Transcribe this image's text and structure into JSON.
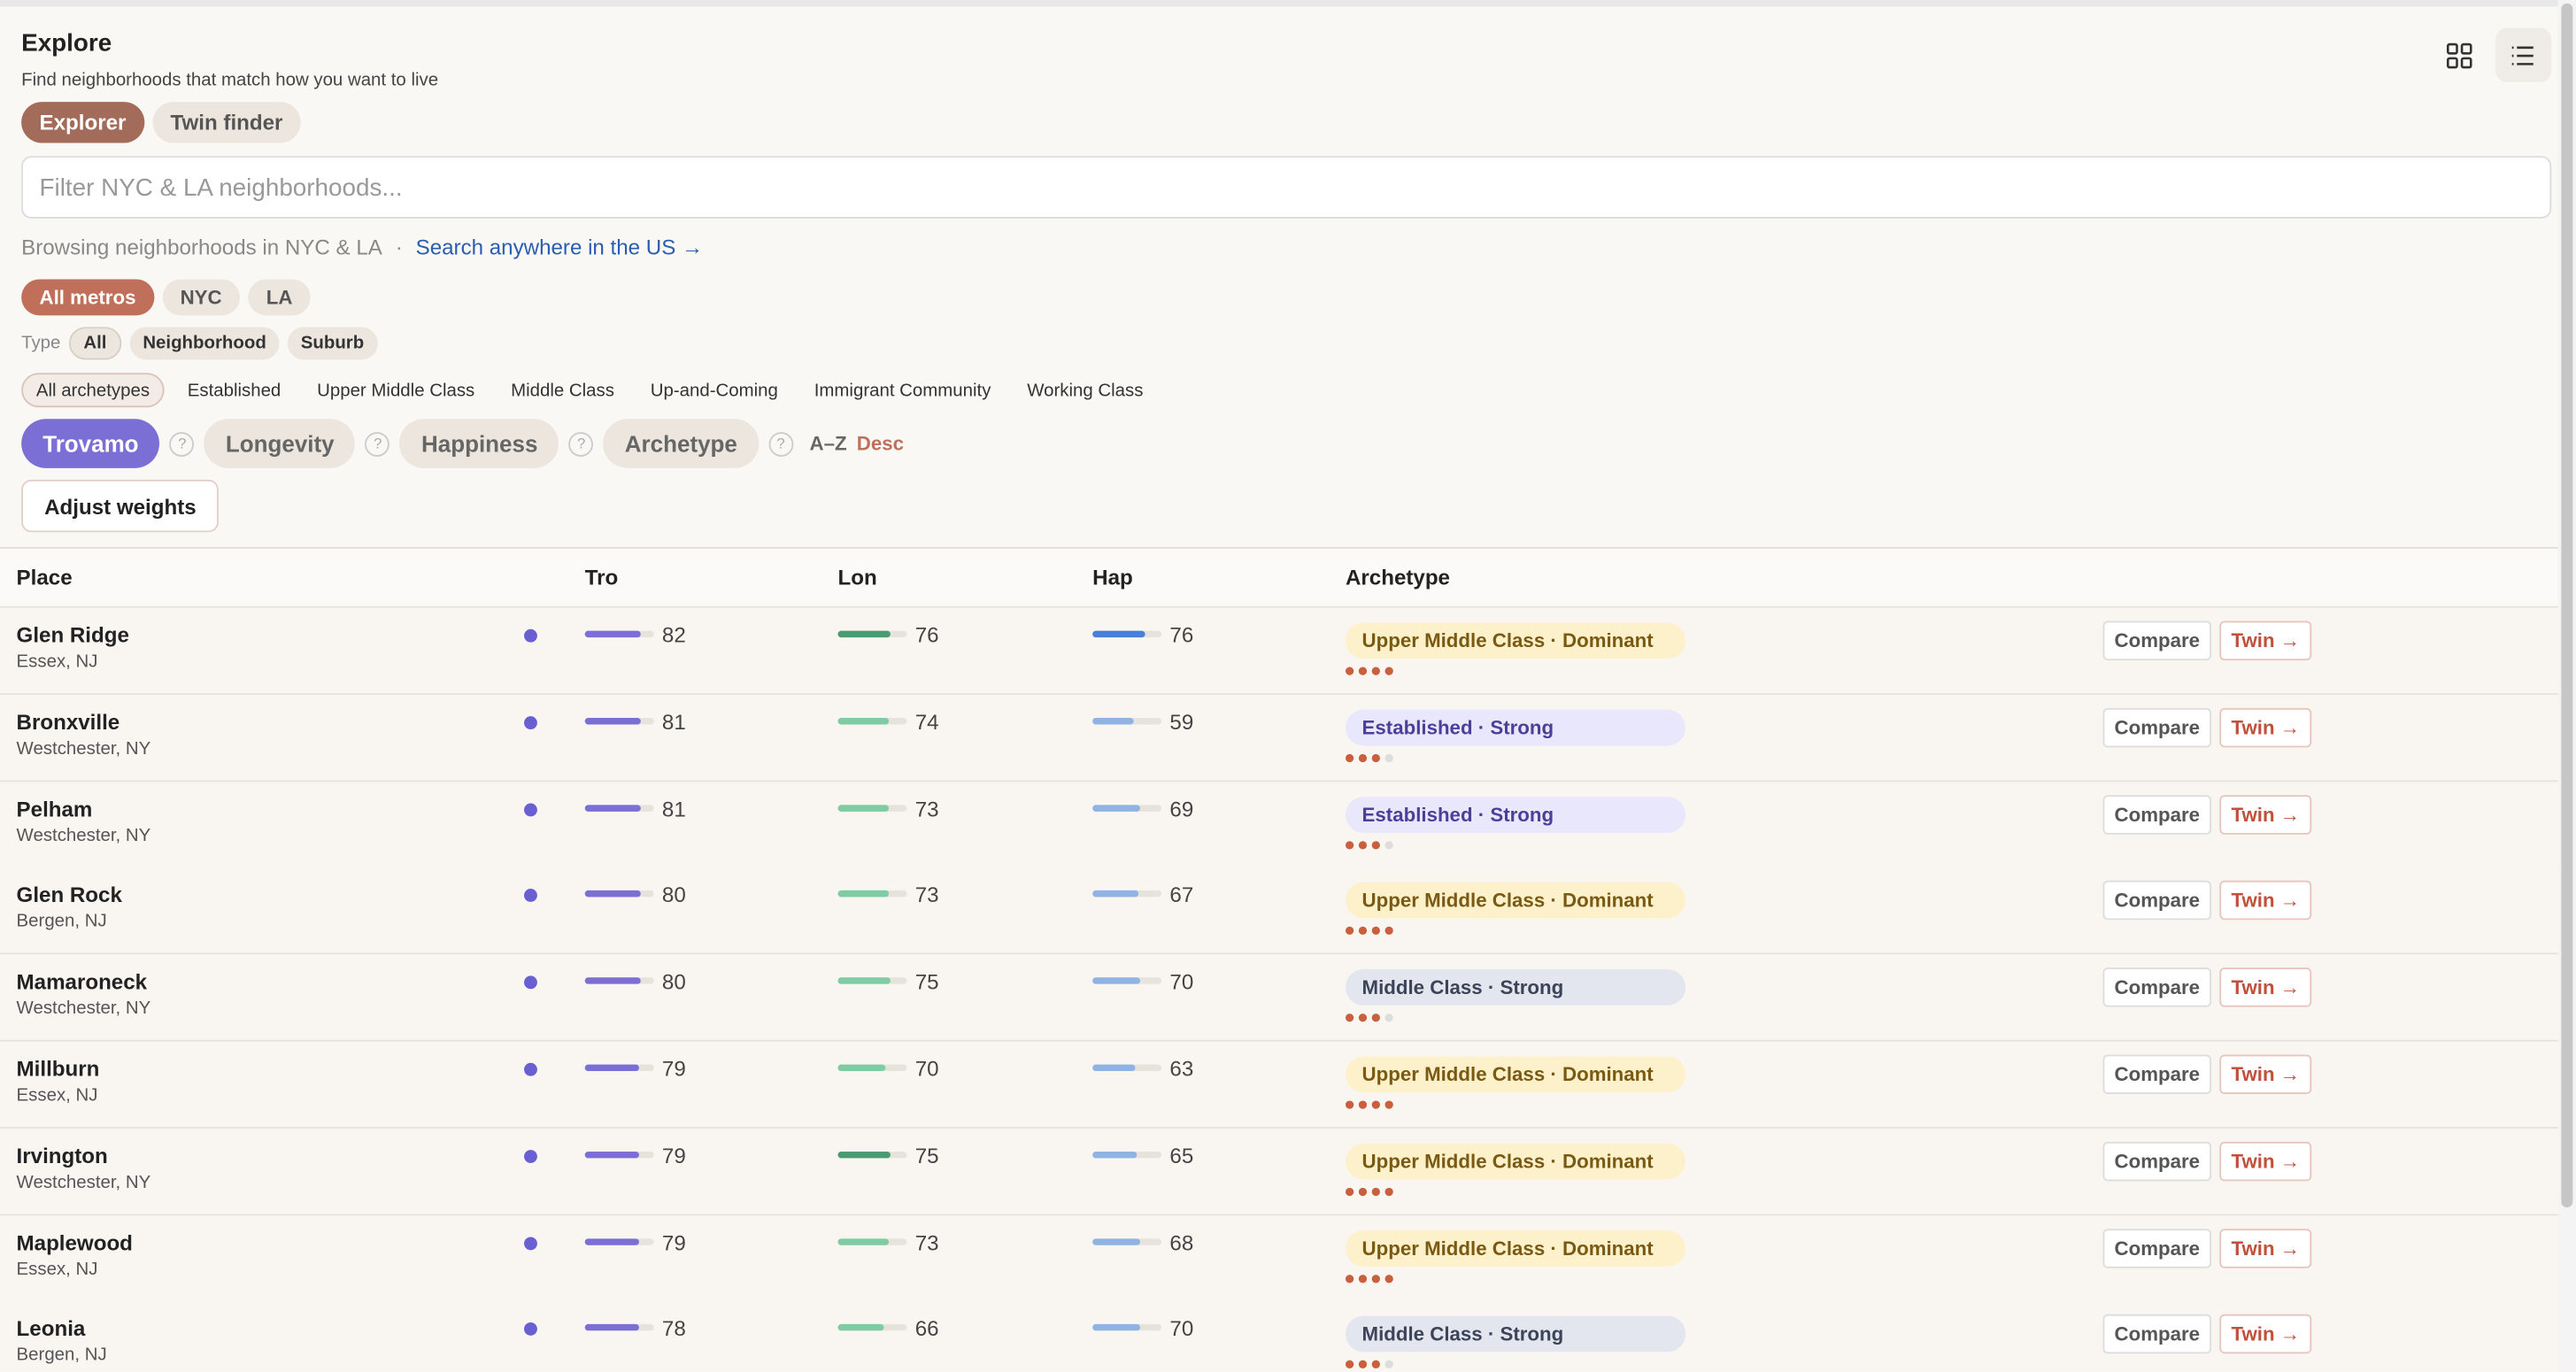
{
  "header": {
    "title": "Explore",
    "subtitle": "Find neighborhoods that match how you want to live"
  },
  "modes": {
    "options": [
      "Explorer",
      "Twin finder"
    ],
    "active": 0
  },
  "search": {
    "placeholder": "Filter NYC & LA neighborhoods..."
  },
  "browse": {
    "text": "Browsing neighborhoods in NYC & LA",
    "separator": "·",
    "link": "Search anywhere in the US →"
  },
  "metros": {
    "options": [
      "All metros",
      "NYC",
      "LA"
    ],
    "active": 0
  },
  "type_filter": {
    "label": "Type",
    "options": [
      "All",
      "Neighborhood",
      "Suburb"
    ],
    "active": 0
  },
  "archetypes": {
    "options": [
      "All archetypes",
      "Established",
      "Upper Middle Class",
      "Middle Class",
      "Up-and-Coming",
      "Immigrant Community",
      "Working Class"
    ],
    "active": 0
  },
  "sort": {
    "options": [
      "Trovamo",
      "Longevity",
      "Happiness",
      "Archetype"
    ],
    "active": 0,
    "help": "?",
    "alpha": "A–Z",
    "order": "Desc"
  },
  "adjust": "Adjust weights",
  "table": {
    "columns": [
      "Place",
      "Tro",
      "Lon",
      "Hap",
      "Archetype"
    ],
    "bar_range": [
      0,
      100
    ],
    "strength_scale": 4,
    "compare_label": "Compare",
    "twin_label": "Twin →",
    "rows": [
      {
        "name": "Glen Ridge",
        "location": "Essex, NJ",
        "tro": 82,
        "lon": 76,
        "hap": 76,
        "lon_color": "#4a9a72",
        "hap_color": "#4a7fd6",
        "archetype": "Upper Middle Class · Dominant",
        "badge_color": "#fdf1cc",
        "badge_text": "#7a5a12",
        "strength": 4
      },
      {
        "name": "Bronxville",
        "location": "Westchester, NY",
        "tro": 81,
        "lon": 74,
        "hap": 59,
        "lon_color": "#7fcba3",
        "hap_color": "#8fb4e3",
        "archetype": "Established · Strong",
        "badge_color": "#e9e7fb",
        "badge_text": "#4a3f99",
        "strength": 3
      },
      {
        "name": "Pelham",
        "location": "Westchester, NY",
        "tro": 81,
        "lon": 73,
        "hap": 69,
        "lon_color": "#7fcba3",
        "hap_color": "#8fb4e3",
        "archetype": "Established · Strong",
        "badge_color": "#e9e7fb",
        "badge_text": "#4a3f99",
        "strength": 3
      },
      {
        "name": "Glen Rock",
        "location": "Bergen, NJ",
        "tro": 80,
        "lon": 73,
        "hap": 67,
        "lon_color": "#7fcba3",
        "hap_color": "#8fb4e3",
        "archetype": "Upper Middle Class · Dominant",
        "badge_color": "#fdf1cc",
        "badge_text": "#7a5a12",
        "strength": 4
      },
      {
        "name": "Mamaroneck",
        "location": "Westchester, NY",
        "tro": 80,
        "lon": 75,
        "hap": 70,
        "lon_color": "#7fcba3",
        "hap_color": "#8fb4e3",
        "archetype": "Middle Class · Strong",
        "badge_color": "#e3e6ee",
        "badge_text": "#3b4458",
        "strength": 3
      },
      {
        "name": "Millburn",
        "location": "Essex, NJ",
        "tro": 79,
        "lon": 70,
        "hap": 63,
        "lon_color": "#7fcba3",
        "hap_color": "#8fb4e3",
        "archetype": "Upper Middle Class · Dominant",
        "badge_color": "#fdf1cc",
        "badge_text": "#7a5a12",
        "strength": 4
      },
      {
        "name": "Irvington",
        "location": "Westchester, NY",
        "tro": 79,
        "lon": 75,
        "hap": 65,
        "lon_color": "#4a9a72",
        "hap_color": "#8fb4e3",
        "archetype": "Upper Middle Class · Dominant",
        "badge_color": "#fdf1cc",
        "badge_text": "#7a5a12",
        "strength": 4
      },
      {
        "name": "Maplewood",
        "location": "Essex, NJ",
        "tro": 79,
        "lon": 73,
        "hap": 68,
        "lon_color": "#7fcba3",
        "hap_color": "#8fb4e3",
        "archetype": "Upper Middle Class · Dominant",
        "badge_color": "#fdf1cc",
        "badge_text": "#7a5a12",
        "strength": 4
      },
      {
        "name": "Leonia",
        "location": "Bergen, NJ",
        "tro": 78,
        "lon": 66,
        "hap": 70,
        "lon_color": "#7fcba3",
        "hap_color": "#8fb4e3",
        "archetype": "Middle Class · Strong",
        "badge_color": "#e3e6ee",
        "badge_text": "#3b4458",
        "strength": 3
      }
    ]
  }
}
